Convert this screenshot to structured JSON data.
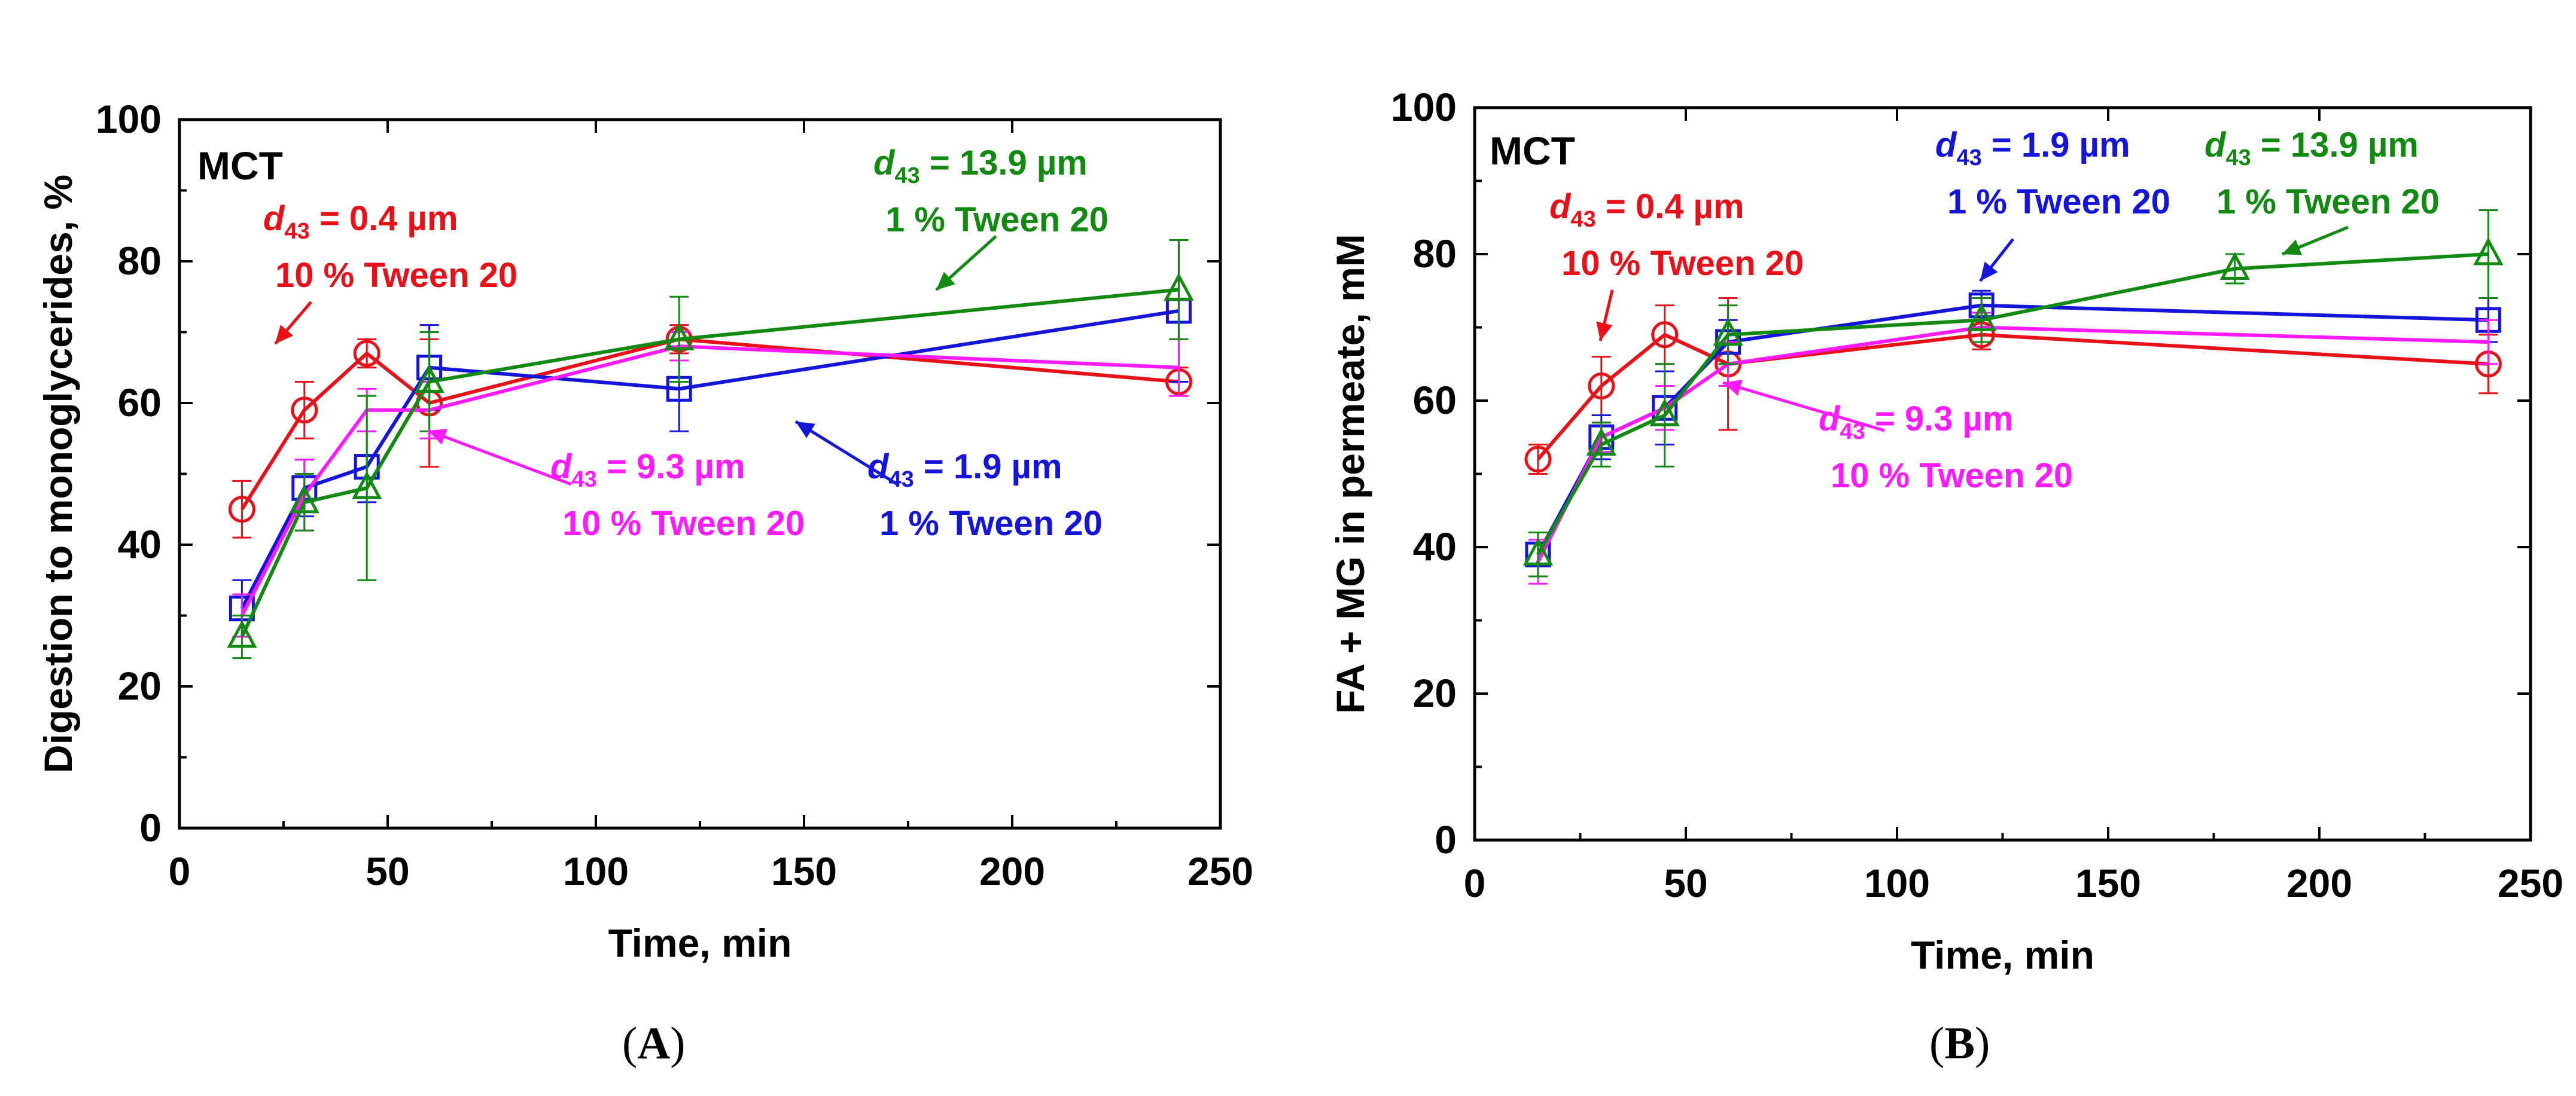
{
  "chart_data": [
    {
      "panel": "A",
      "caption_open": "(",
      "caption_letter": "A",
      "caption_close": ")",
      "type": "line",
      "label": "MCT",
      "xlabel": "Time, min",
      "ylabel": "Digestion to monoglycerides, %",
      "xlim": [
        0,
        250
      ],
      "ylim": [
        0,
        100
      ],
      "xticks": [
        "0",
        "50",
        "100",
        "150",
        "200",
        "250"
      ],
      "yticks": [
        "0",
        "20",
        "40",
        "60",
        "80",
        "100"
      ],
      "series": [
        {
          "name": "d43 = 0.4 µm, 10 % Tween 20",
          "color": "#e8111a",
          "marker": "circle",
          "x": [
            15,
            30,
            45,
            60,
            120,
            240
          ],
          "y": [
            45,
            59,
            67,
            60,
            69,
            63
          ],
          "err": [
            4,
            4,
            2,
            9,
            2,
            2
          ]
        },
        {
          "name": "d43 = 1.9 µm, 1 % Tween 20",
          "color": "#1515d9",
          "marker": "square",
          "x": [
            15,
            30,
            45,
            60,
            120,
            240
          ],
          "y": [
            31,
            48,
            51,
            65,
            62,
            73
          ],
          "err": [
            4,
            4,
            5,
            6,
            6,
            10
          ]
        },
        {
          "name": "d43 = 9.3 µm, 10 % Tween 20",
          "color": "#ff1aff",
          "marker": "none",
          "x": [
            15,
            30,
            45,
            60,
            120,
            240
          ],
          "y": [
            30,
            47,
            59,
            59,
            68,
            65
          ],
          "err": [
            3,
            5,
            3,
            4,
            2,
            4
          ]
        },
        {
          "name": "d43 = 13.9 µm, 1 % Tween 20",
          "color": "#128a12",
          "marker": "triangle",
          "x": [
            15,
            30,
            45,
            60,
            120,
            240
          ],
          "y": [
            27,
            46,
            48,
            63,
            69,
            76
          ],
          "err": [
            3,
            4,
            13,
            7,
            6,
            7
          ]
        }
      ],
      "annotations": [
        {
          "id": "red",
          "color": "#e8111a",
          "sym": "d",
          "sub": "43",
          "value": " = 0.4 µm",
          "line2": "10 % Tween 20"
        },
        {
          "id": "green",
          "color": "#128a12",
          "sym": "d",
          "sub": "43",
          "value": " = 13.9 µm",
          "line2": "1 % Tween 20"
        },
        {
          "id": "magenta",
          "color": "#ff1aff",
          "sym": "d",
          "sub": "43",
          "value": " = 9.3 µm",
          "line2": "10 % Tween 20"
        },
        {
          "id": "blue",
          "color": "#1515d9",
          "sym": "d",
          "sub": "43",
          "value": " = 1.9 µm",
          "line2": "1 % Tween 20"
        }
      ]
    },
    {
      "panel": "B",
      "caption_open": "(",
      "caption_letter": "B",
      "caption_close": ")",
      "type": "line",
      "label": "MCT",
      "xlabel": "Time, min",
      "ylabel": "FA + MG in permeate, mM",
      "xlim": [
        0,
        250
      ],
      "ylim": [
        0,
        100
      ],
      "xticks": [
        "0",
        "50",
        "100",
        "150",
        "200",
        "250"
      ],
      "yticks": [
        "0",
        "20",
        "40",
        "60",
        "80",
        "100"
      ],
      "series": [
        {
          "name": "d43 = 0.4 µm, 10 % Tween 20",
          "color": "#e8111a",
          "marker": "circle",
          "x": [
            15,
            30,
            45,
            60,
            120,
            240
          ],
          "y": [
            52,
            62,
            69,
            65,
            69,
            65
          ],
          "err": [
            2,
            4,
            4,
            9,
            2,
            4
          ]
        },
        {
          "name": "d43 = 1.9 µm, 1 % Tween 20",
          "color": "#1515d9",
          "marker": "square",
          "x": [
            15,
            30,
            45,
            60,
            120,
            240
          ],
          "y": [
            39,
            55,
            59,
            68,
            73,
            71
          ],
          "err": [
            3,
            3,
            5,
            3,
            2,
            3
          ]
        },
        {
          "name": "d43 = 9.3 µm, 10 % Tween 20",
          "color": "#ff1aff",
          "marker": "none",
          "x": [
            15,
            30,
            45,
            60,
            120,
            240
          ],
          "y": [
            38,
            55,
            59,
            65,
            70,
            68
          ],
          "err": [
            3,
            2,
            3,
            3,
            2,
            3
          ]
        },
        {
          "name": "d43 = 13.9 µm, 1 % Tween 20",
          "color": "#128a12",
          "marker": "triangle",
          "x": [
            15,
            30,
            45,
            60,
            120,
            180,
            240
          ],
          "y": [
            39,
            54,
            58,
            69,
            71,
            78,
            80
          ],
          "err": [
            3,
            3,
            7,
            4,
            3,
            2,
            6
          ]
        }
      ],
      "annotations": [
        {
          "id": "red",
          "color": "#e8111a",
          "sym": "d",
          "sub": "43",
          "value": " = 0.4 µm",
          "line2": "10 % Tween 20"
        },
        {
          "id": "blue",
          "color": "#1515d9",
          "sym": "d",
          "sub": "43",
          "value": " = 1.9 µm",
          "line2": "1 % Tween 20"
        },
        {
          "id": "green",
          "color": "#128a12",
          "sym": "d",
          "sub": "43",
          "value": " = 13.9 µm",
          "line2": "1 % Tween 20"
        },
        {
          "id": "magenta",
          "color": "#ff1aff",
          "sym": "d",
          "sub": "43",
          "value": " = 9.3 µm",
          "line2": "10 % Tween 20"
        }
      ]
    }
  ]
}
